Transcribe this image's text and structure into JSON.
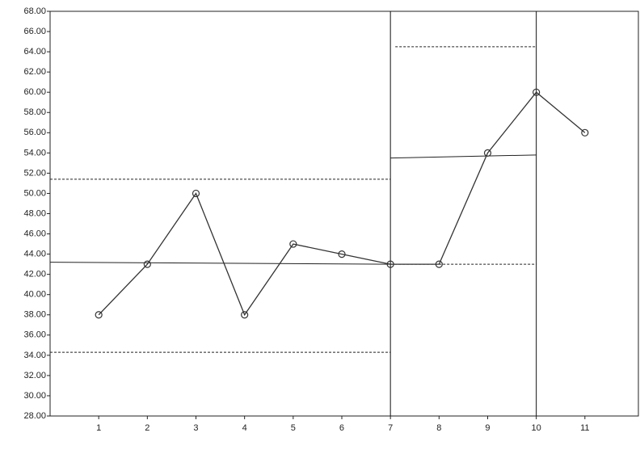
{
  "chart_data": {
    "type": "line",
    "x": [
      1,
      2,
      3,
      4,
      5,
      6,
      7,
      8,
      9,
      10,
      11
    ],
    "values": [
      38,
      43,
      50,
      38,
      45,
      44,
      43,
      43,
      54,
      60,
      56
    ],
    "color": "#333333",
    "marker": "open-circle",
    "xlim": [
      0,
      12.1
    ],
    "xticks": [
      1,
      2,
      3,
      4,
      5,
      6,
      7,
      8,
      9,
      10,
      11
    ],
    "ylim": [
      28,
      68
    ],
    "yticks": [
      {
        "value": 28,
        "label": "28.00"
      },
      {
        "value": 30,
        "label": "30.00"
      },
      {
        "value": 32,
        "label": "32.00"
      },
      {
        "value": 34,
        "label": "34.00"
      },
      {
        "value": 36,
        "label": "36.00"
      },
      {
        "value": 38,
        "label": "38.00"
      },
      {
        "value": 40,
        "label": "40.00"
      },
      {
        "value": 42,
        "label": "42.00"
      },
      {
        "value": 44,
        "label": "44.00"
      },
      {
        "value": 46,
        "label": "46.00"
      },
      {
        "value": 48,
        "label": "48.00"
      },
      {
        "value": 50,
        "label": "50.00"
      },
      {
        "value": 52,
        "label": "52.00"
      },
      {
        "value": 54,
        "label": "54.00"
      },
      {
        "value": 56,
        "label": "56.00"
      },
      {
        "value": 58,
        "label": "58.00"
      },
      {
        "value": 60,
        "label": "60.00"
      },
      {
        "value": 62,
        "label": "62.00"
      },
      {
        "value": 64,
        "label": "64.00"
      },
      {
        "value": 66,
        "label": "66.00"
      },
      {
        "value": 68,
        "label": "68.00"
      }
    ],
    "grid": false,
    "phase_lines": [
      7,
      10
    ],
    "reference_lines": [
      {
        "x": [
          0,
          7
        ],
        "y": [
          43.2,
          43.0
        ],
        "style": "solid"
      },
      {
        "x": [
          0,
          7
        ],
        "y": [
          51.4,
          51.4
        ],
        "style": "dashed"
      },
      {
        "x": [
          0,
          7
        ],
        "y": [
          34.3,
          34.3
        ],
        "style": "dashed"
      },
      {
        "x": [
          7,
          10
        ],
        "y": [
          53.5,
          53.8
        ],
        "style": "solid"
      },
      {
        "x": [
          7.1,
          10
        ],
        "y": [
          64.5,
          64.5
        ],
        "style": "dashed"
      },
      {
        "x": [
          7,
          10
        ],
        "y": [
          43.0,
          43.0
        ],
        "style": "dashed"
      }
    ]
  }
}
